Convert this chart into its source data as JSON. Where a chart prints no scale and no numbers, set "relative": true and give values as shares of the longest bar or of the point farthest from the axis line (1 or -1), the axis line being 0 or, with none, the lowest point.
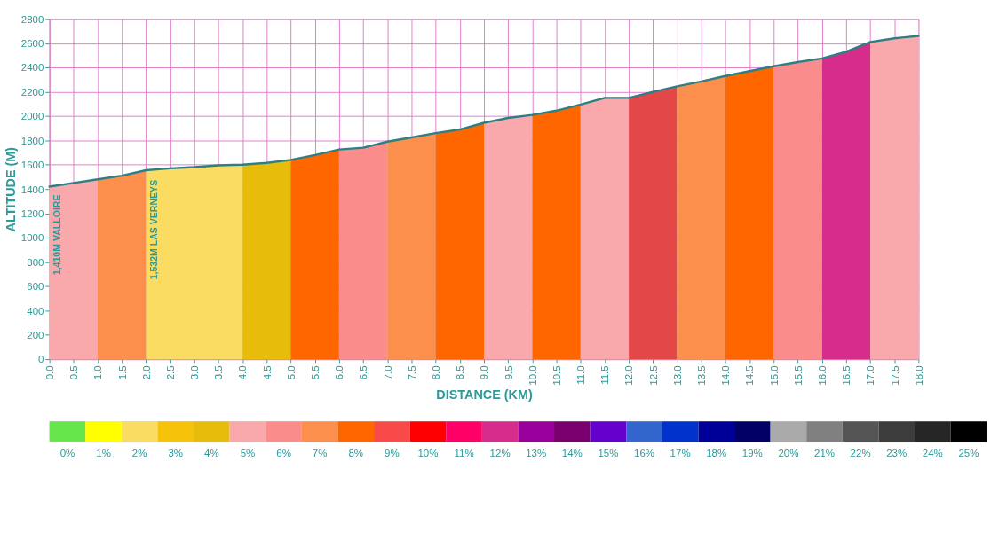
{
  "chart_data": [
    {
      "type": "area",
      "xlabel": "DISTANCE (KM)",
      "ylabel": "ALTITUDE (M)",
      "grid": true,
      "xlim": [
        0,
        18
      ],
      "ylim": [
        0,
        2800
      ],
      "xticks": [
        {
          "value": 0,
          "label": "0.0"
        },
        {
          "value": 0.5,
          "label": "0.5"
        },
        {
          "value": 1,
          "label": "1.0"
        },
        {
          "value": 1.5,
          "label": "1.5"
        },
        {
          "value": 2,
          "label": "2.0"
        },
        {
          "value": 2.5,
          "label": "2.5"
        },
        {
          "value": 3,
          "label": "3.0"
        },
        {
          "value": 3.5,
          "label": "3.5"
        },
        {
          "value": 4,
          "label": "4.0"
        },
        {
          "value": 4.5,
          "label": "4.5"
        },
        {
          "value": 5,
          "label": "5.0"
        },
        {
          "value": 5.5,
          "label": "5.5"
        },
        {
          "value": 6,
          "label": "6.0"
        },
        {
          "value": 6.5,
          "label": "6.5"
        },
        {
          "value": 7,
          "label": "7.0"
        },
        {
          "value": 7.5,
          "label": "7.5"
        },
        {
          "value": 8,
          "label": "8.0"
        },
        {
          "value": 8.5,
          "label": "8.5"
        },
        {
          "value": 9,
          "label": "9.0"
        },
        {
          "value": 9.5,
          "label": "9.5"
        },
        {
          "value": 10,
          "label": "10.0"
        },
        {
          "value": 10.5,
          "label": "10.5"
        },
        {
          "value": 11,
          "label": "11.0"
        },
        {
          "value": 11.5,
          "label": "11.5"
        },
        {
          "value": 12,
          "label": "12.0"
        },
        {
          "value": 12.5,
          "label": "12.5"
        },
        {
          "value": 13,
          "label": "13.0"
        },
        {
          "value": 13.5,
          "label": "13.5"
        },
        {
          "value": 14,
          "label": "14.0"
        },
        {
          "value": 14.5,
          "label": "14.5"
        },
        {
          "value": 15,
          "label": "15.0"
        },
        {
          "value": 15.5,
          "label": "15.5"
        },
        {
          "value": 16,
          "label": "16.0"
        },
        {
          "value": 16.5,
          "label": "16.5"
        },
        {
          "value": 17,
          "label": "17.0"
        },
        {
          "value": 17.5,
          "label": "17.5"
        },
        {
          "value": 18,
          "label": "18.0"
        }
      ],
      "yticks": [
        0,
        200,
        400,
        600,
        800,
        1000,
        1200,
        1400,
        1600,
        1800,
        2000,
        2200,
        2400,
        2600,
        2800
      ],
      "annotations": [
        {
          "text": "1,410M VALLOIRE",
          "x": 0,
          "y": 1410
        },
        {
          "text": "1,532M LAS VERNEYS",
          "x": 2,
          "y": 1532
        }
      ],
      "series": [
        {
          "type": "area",
          "color": "#f9a8ac",
          "x": [
            0,
            0.5,
            1
          ],
          "values": [
            1420,
            1450,
            1480
          ]
        },
        {
          "type": "area",
          "color": "#fb8f4b",
          "x": [
            1,
            1.5,
            2
          ],
          "values": [
            1480,
            1510,
            1555
          ]
        },
        {
          "type": "area",
          "color": "#fbdc62",
          "x": [
            2,
            2.5,
            3,
            3.5,
            4
          ],
          "values": [
            1555,
            1570,
            1580,
            1595,
            1600
          ]
        },
        {
          "type": "area",
          "color": "#e8bc0a",
          "x": [
            4,
            4.5,
            5
          ],
          "values": [
            1600,
            1615,
            1640
          ]
        },
        {
          "type": "area",
          "color": "#ff6600",
          "x": [
            5,
            5.5,
            6
          ],
          "values": [
            1640,
            1680,
            1725
          ]
        },
        {
          "type": "area",
          "color": "#fb8c8c",
          "x": [
            6,
            6.5,
            7
          ],
          "values": [
            1725,
            1740,
            1790
          ]
        },
        {
          "type": "area",
          "color": "#fb8f4b",
          "x": [
            7,
            7.5,
            8
          ],
          "values": [
            1790,
            1825,
            1860
          ]
        },
        {
          "type": "area",
          "color": "#ff6600",
          "x": [
            8,
            8.5,
            9
          ],
          "values": [
            1860,
            1890,
            1945
          ]
        },
        {
          "type": "area",
          "color": "#f9a8ac",
          "x": [
            9,
            9.5,
            10
          ],
          "values": [
            1945,
            1985,
            2010
          ]
        },
        {
          "type": "area",
          "color": "#ff6600",
          "x": [
            10,
            10.5,
            11
          ],
          "values": [
            2010,
            2045,
            2095
          ]
        },
        {
          "type": "area",
          "color": "#f9a8ac",
          "x": [
            11,
            11.5,
            12
          ],
          "values": [
            2095,
            2150,
            2150
          ]
        },
        {
          "type": "area",
          "color": "#e34748",
          "x": [
            12,
            12.5,
            13
          ],
          "values": [
            2150,
            2200,
            2245
          ]
        },
        {
          "type": "area",
          "color": "#fb8f4b",
          "x": [
            13,
            13.5,
            14
          ],
          "values": [
            2245,
            2285,
            2330
          ]
        },
        {
          "type": "area",
          "color": "#ff6600",
          "x": [
            14,
            14.5,
            15
          ],
          "values": [
            2330,
            2370,
            2410
          ]
        },
        {
          "type": "area",
          "color": "#fb8c8c",
          "x": [
            15,
            15.5,
            16
          ],
          "values": [
            2410,
            2445,
            2475
          ]
        },
        {
          "type": "area",
          "color": "#d62d8c",
          "x": [
            16,
            16.5,
            17
          ],
          "values": [
            2475,
            2530,
            2610
          ]
        },
        {
          "type": "area",
          "color": "#f9a8ac",
          "x": [
            17,
            17.5,
            18
          ],
          "values": [
            2610,
            2640,
            2660
          ]
        },
        {
          "type": "line",
          "color": "#2e7f84",
          "x": [
            0,
            0.5,
            1,
            1.5,
            2,
            2.5,
            3,
            3.5,
            4,
            4.5,
            5,
            5.5,
            6,
            6.5,
            7,
            7.5,
            8,
            8.5,
            9,
            9.5,
            10,
            10.5,
            11,
            11.5,
            12,
            12.5,
            13,
            13.5,
            14,
            14.5,
            15,
            15.5,
            16,
            16.5,
            17,
            17.5,
            18
          ],
          "values": [
            1420,
            1450,
            1480,
            1510,
            1555,
            1570,
            1580,
            1595,
            1600,
            1615,
            1640,
            1680,
            1725,
            1740,
            1790,
            1825,
            1860,
            1890,
            1945,
            1985,
            2010,
            2045,
            2095,
            2150,
            2150,
            2200,
            2245,
            2285,
            2330,
            2370,
            2410,
            2445,
            2475,
            2530,
            2610,
            2640,
            2660
          ]
        }
      ]
    },
    {
      "type": "bar",
      "relative": true,
      "values": [
        1,
        1,
        1,
        1,
        1,
        1,
        1,
        1,
        1,
        1,
        1,
        1,
        1,
        1,
        1,
        1,
        1,
        1,
        1,
        1,
        1,
        1,
        1,
        1,
        1,
        1
      ],
      "categories": [
        "0%",
        "1%",
        "2%",
        "3%",
        "4%",
        "5%",
        "6%",
        "7%",
        "8%",
        "9%",
        "10%",
        "11%",
        "12%",
        "13%",
        "14%",
        "15%",
        "16%",
        "17%",
        "18%",
        "19%",
        "20%",
        "21%",
        "22%",
        "23%",
        "24%",
        "25%"
      ],
      "colors": [
        "#66e64a",
        "#ffff00",
        "#fbdc62",
        "#f7c20a",
        "#e8bc0a",
        "#f9a8ac",
        "#fb8c8c",
        "#fb8f4b",
        "#ff6600",
        "#f94a4a",
        "#ff0000",
        "#ff0066",
        "#d62d8c",
        "#99009c",
        "#7a0070",
        "#6600cc",
        "#3366cc",
        "#0033cc",
        "#000099",
        "#000066",
        "#aaaaaa",
        "#808080",
        "#555555",
        "#3c3c3c",
        "#262626",
        "#000000"
      ]
    }
  ]
}
